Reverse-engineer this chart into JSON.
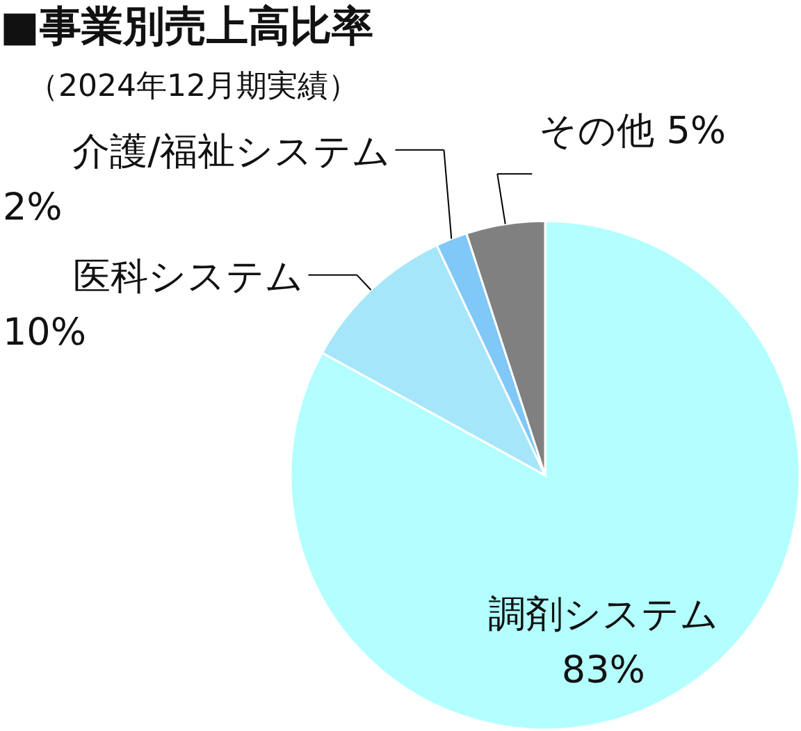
{
  "chart_data": {
    "type": "pie",
    "title": "■事業別売上高比率",
    "subtitle": "（2024年12月期実績）",
    "categories": [
      "調剤システム",
      "医科システム",
      "介護/福祉システム",
      "その他"
    ],
    "values": [
      83,
      10,
      2,
      5
    ],
    "value_labels": [
      "83%",
      "10%",
      "2%",
      "5%"
    ],
    "colors": [
      "#b3ffff",
      "#a6e6fb",
      "#7fc8f8",
      "#808080"
    ]
  }
}
